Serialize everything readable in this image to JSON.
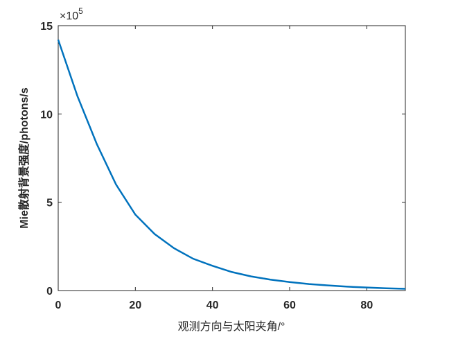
{
  "chart_data": {
    "type": "line",
    "x_label": "观测方向与太阳夹角/°",
    "y_label": "Mie散射背景强度/photons/s",
    "y_multiplier_base": "×10",
    "y_multiplier_exponent": "5",
    "x": [
      0,
      5,
      10,
      15,
      20,
      25,
      30,
      35,
      40,
      45,
      50,
      55,
      60,
      65,
      70,
      75,
      80,
      85,
      90
    ],
    "series": [
      {
        "color": "#0072bd",
        "values": [
          14.2,
          11.0,
          8.3,
          6.0,
          4.3,
          3.2,
          2.4,
          1.8,
          1.4,
          1.05,
          0.8,
          0.62,
          0.48,
          0.37,
          0.29,
          0.22,
          0.17,
          0.13,
          0.1
        ]
      }
    ],
    "xlim": [
      0,
      90
    ],
    "xticks": [
      0,
      20,
      40,
      60,
      80
    ],
    "ylim": [
      0,
      15
    ],
    "yticks": [
      0,
      5,
      10,
      15
    ]
  }
}
